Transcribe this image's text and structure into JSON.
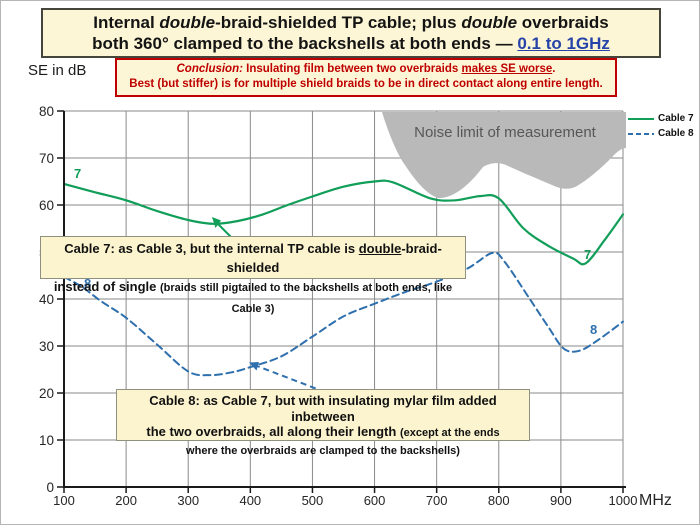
{
  "title": {
    "lines": [
      [
        {
          "t": "Internal "
        },
        {
          "t": "double",
          "c": "i"
        },
        {
          "t": "-braid-shielded TP cable; plus "
        },
        {
          "t": "double",
          "c": "i"
        },
        {
          "t": " overbraids"
        }
      ],
      [
        {
          "t": "both 360° clamped to the backshells at both ends — "
        },
        {
          "t": "0.1 to 1GHz",
          "c": "blue u"
        }
      ]
    ]
  },
  "conclusion": {
    "lines": [
      [
        {
          "t": "Conclusion:",
          "c": "i"
        },
        {
          "t": " Insulating film between two overbraids "
        },
        {
          "t": "makes SE worse",
          "c": "u"
        },
        {
          "t": "."
        }
      ],
      [
        {
          "t": "Best (but stiffer) is for multiple shield braids to be in direct contact along entire length."
        }
      ]
    ]
  },
  "axes": {
    "y_label": "SE in dB",
    "x_unit": "MHz"
  },
  "annotations": {
    "cable7_box": {
      "lines": [
        [
          {
            "t": "Cable 7: as Cable 3, but the internal TP cable is "
          },
          {
            "t": "double",
            "c": "u"
          },
          {
            "t": "-braid-shielded"
          }
        ],
        [
          {
            "t": "instead of single "
          },
          {
            "t": "(braids still pigtailed to the backshells at both ends, like Cable 3)",
            "c": "sm"
          }
        ]
      ]
    },
    "cable8_box": {
      "lines": [
        [
          {
            "t": "Cable 8: as Cable 7, but with insulating mylar film added inbetween"
          }
        ],
        [
          {
            "t": "the two overbraids, all along their length  "
          },
          {
            "t": "(except at the ends",
            "c": "sm"
          }
        ],
        [
          {
            "t": "where the overbraids are clamped to the backshells)",
            "c": "sm"
          }
        ]
      ]
    },
    "curve_labels": {
      "c7_start": "7",
      "c8_start": "8",
      "c7_end": "7",
      "c8_end": "8"
    }
  },
  "colors": {
    "cable7_green": "#119e58",
    "cable8_blue": "#2e6fad",
    "conclusion_red": "#bf0000",
    "title_blue": "#2543a8",
    "box_cream": "#fdf6d6",
    "noise_gray": "#b9b9b9",
    "grid_gray": "#8a8a8a"
  },
  "chart_data": {
    "type": "line",
    "xlabel": "MHz",
    "ylabel": "SE in dB",
    "xlim": [
      100,
      1000
    ],
    "ylim": [
      0,
      80
    ],
    "x_ticks": [
      100,
      200,
      300,
      400,
      500,
      600,
      700,
      800,
      900,
      1000
    ],
    "y_ticks": [
      0,
      10,
      20,
      30,
      40,
      50,
      60,
      70,
      80
    ],
    "grid": true,
    "legend_position": "top-right",
    "noise_region_label": "Noise limit of measurement",
    "series": [
      {
        "name": "Cable 7",
        "color": "#119e58",
        "dash": "solid",
        "points": [
          [
            100,
            64.5
          ],
          [
            150,
            62.7
          ],
          [
            200,
            61
          ],
          [
            250,
            58.7
          ],
          [
            300,
            56.8
          ],
          [
            340,
            56
          ],
          [
            380,
            56.6
          ],
          [
            420,
            58
          ],
          [
            460,
            60
          ],
          [
            500,
            61.8
          ],
          [
            550,
            63.9
          ],
          [
            600,
            65
          ],
          [
            630,
            64.8
          ],
          [
            690,
            61.4
          ],
          [
            730,
            61
          ],
          [
            770,
            61.9
          ],
          [
            800,
            61.4
          ],
          [
            840,
            55
          ],
          [
            880,
            51.3
          ],
          [
            920,
            48.6
          ],
          [
            940,
            47.6
          ],
          [
            970,
            52.5
          ],
          [
            1000,
            58
          ]
        ]
      },
      {
        "name": "Cable 8",
        "color": "#2e6fad",
        "dash": "dashed",
        "points": [
          [
            100,
            44.7
          ],
          [
            130,
            42.5
          ],
          [
            160,
            39.5
          ],
          [
            200,
            36
          ],
          [
            250,
            30.3
          ],
          [
            300,
            24.6
          ],
          [
            335,
            23.8
          ],
          [
            370,
            24.4
          ],
          [
            400,
            25.5
          ],
          [
            450,
            27.8
          ],
          [
            500,
            32
          ],
          [
            550,
            36.3
          ],
          [
            600,
            39
          ],
          [
            650,
            41.5
          ],
          [
            700,
            43.7
          ],
          [
            750,
            46.5
          ],
          [
            790,
            49.8
          ],
          [
            810,
            47.8
          ],
          [
            850,
            40
          ],
          [
            880,
            34
          ],
          [
            905,
            29.4
          ],
          [
            930,
            29
          ],
          [
            960,
            31.3
          ],
          [
            1000,
            35.2
          ]
        ]
      }
    ]
  }
}
